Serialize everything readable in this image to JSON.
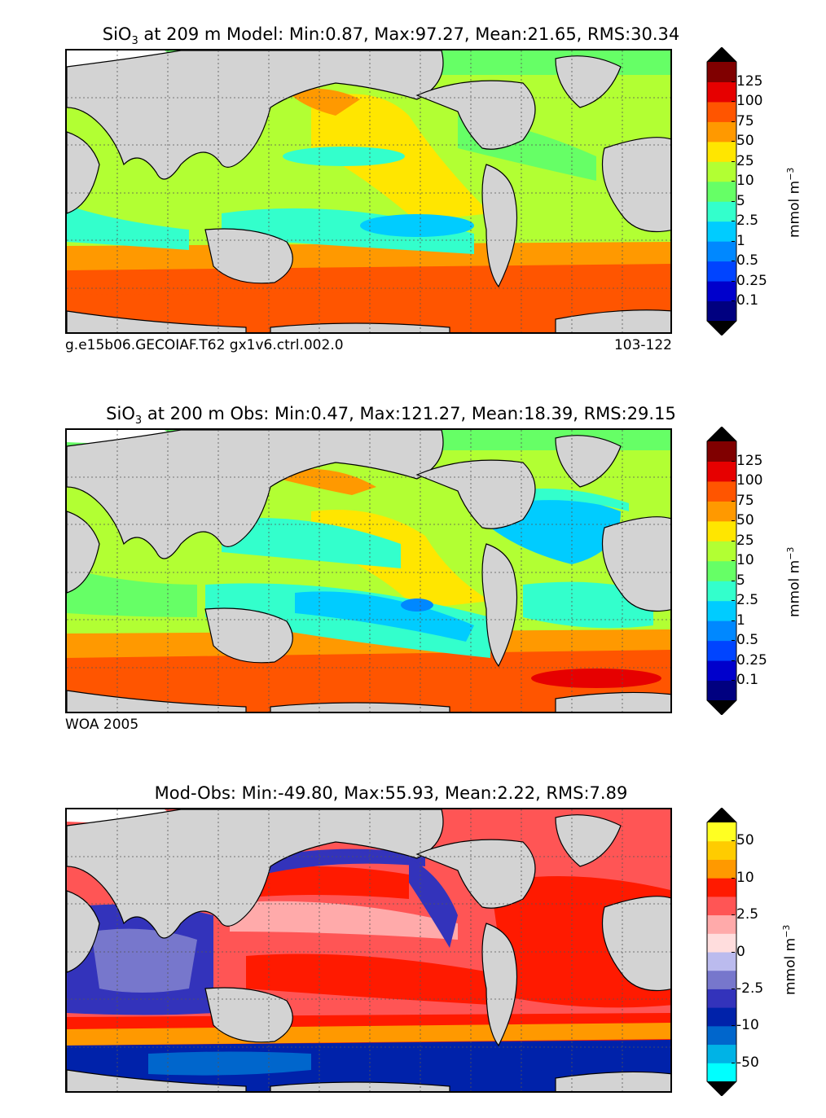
{
  "panels": [
    {
      "title_prefix": "SiO",
      "title_sub": "3",
      "title_rest": " at 209 m Model: Min:0.87, Max:97.27, Mean:21.65, RMS:30.34",
      "footer_left": "g.e15b06.GECOIAF.T62 gx1v6.ctrl.002.0",
      "footer_right": "103-122",
      "colorbar": {
        "ticks": [
          "125",
          "100",
          "75",
          "50",
          "25",
          "10",
          "5",
          "2.5",
          "1",
          "0.5",
          "0.25",
          "0.1"
        ],
        "colors": [
          "#000080",
          "#0000cc",
          "#0044ff",
          "#0088ff",
          "#00ccff",
          "#33ffcc",
          "#66ff66",
          "#b2ff33",
          "#ffe600",
          "#ff9900",
          "#ff5500",
          "#e60000",
          "#800000"
        ],
        "units_base": "mmol m",
        "units_sup": "−3"
      }
    },
    {
      "title_prefix": "SiO",
      "title_sub": "3",
      "title_rest": " at 200 m Obs: Min:0.47, Max:121.27, Mean:18.39, RMS:29.15",
      "footer_left": "WOA 2005",
      "footer_right": "",
      "colorbar": {
        "ticks": [
          "125",
          "100",
          "75",
          "50",
          "25",
          "10",
          "5",
          "2.5",
          "1",
          "0.5",
          "0.25",
          "0.1"
        ],
        "colors": [
          "#000080",
          "#0000cc",
          "#0044ff",
          "#0088ff",
          "#00ccff",
          "#33ffcc",
          "#66ff66",
          "#b2ff33",
          "#ffe600",
          "#ff9900",
          "#ff5500",
          "#e60000",
          "#800000"
        ],
        "units_base": "mmol m",
        "units_sup": "−3"
      }
    },
    {
      "title_prefix": "Mod-Obs: Min:-49.80, Max:55.93, Mean:2.22, RMS:7.89",
      "title_sub": "",
      "title_rest": "",
      "footer_left": "",
      "footer_right": "",
      "colorbar": {
        "ticks": [
          "50",
          "10",
          "2.5",
          "0",
          "-2.5",
          "-10",
          "-50"
        ],
        "colors": [
          "#00ffff",
          "#00b3e6",
          "#0066cc",
          "#0022aa",
          "#3333bb",
          "#7777cc",
          "#bbbbee",
          "#ffdddd",
          "#ffaaaa",
          "#ff5555",
          "#ff1a00",
          "#ff9900",
          "#ffcc00",
          "#ffff22"
        ],
        "units_base": "mmol m",
        "units_sup": "−3"
      }
    }
  ],
  "colors": {
    "land": "#d3d3d3",
    "missing": "#ffffff",
    "grid": "#555555"
  }
}
